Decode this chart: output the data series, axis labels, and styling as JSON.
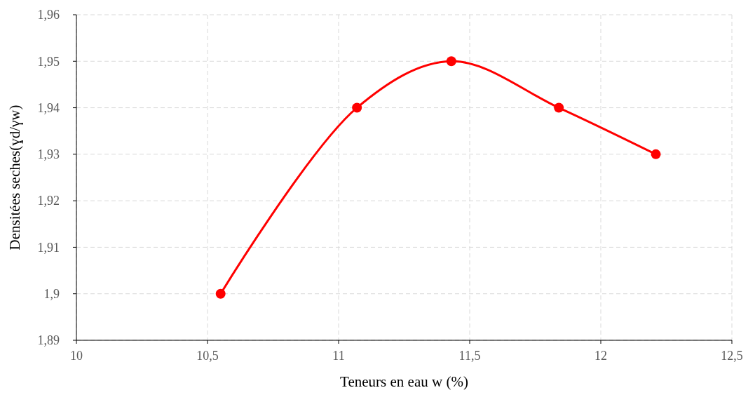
{
  "chart_data": {
    "type": "line",
    "xlabel": "Teneurs en eau w (%)",
    "ylabel": "Densitées seches(ɣd/γw)",
    "x": [
      10.55,
      11.07,
      11.43,
      11.84,
      12.21
    ],
    "series": [
      {
        "color": "#ff0000",
        "values": [
          1.9,
          1.94,
          1.95,
          1.94,
          1.93
        ]
      }
    ],
    "xlim": [
      10,
      12.5
    ],
    "xticks": [
      10,
      {
        "value": 10.5,
        "label": "10,5"
      },
      11,
      {
        "value": 11.5,
        "label": "11,5"
      },
      12,
      {
        "value": 12.5,
        "label": "12,5"
      }
    ],
    "ylim": [
      1.89,
      1.96
    ],
    "yticks": [
      {
        "value": 1.89,
        "label": "1,89"
      },
      {
        "value": 1.9,
        "label": "1,9"
      },
      {
        "value": 1.91,
        "label": "1,91"
      },
      {
        "value": 1.92,
        "label": "1,92"
      },
      {
        "value": 1.93,
        "label": "1,93"
      },
      {
        "value": 1.94,
        "label": "1,94"
      },
      {
        "value": 1.95,
        "label": "1,95"
      },
      {
        "value": 1.96,
        "label": "1,96"
      }
    ],
    "grid": true,
    "marker": "circle",
    "line_style": "solid"
  }
}
